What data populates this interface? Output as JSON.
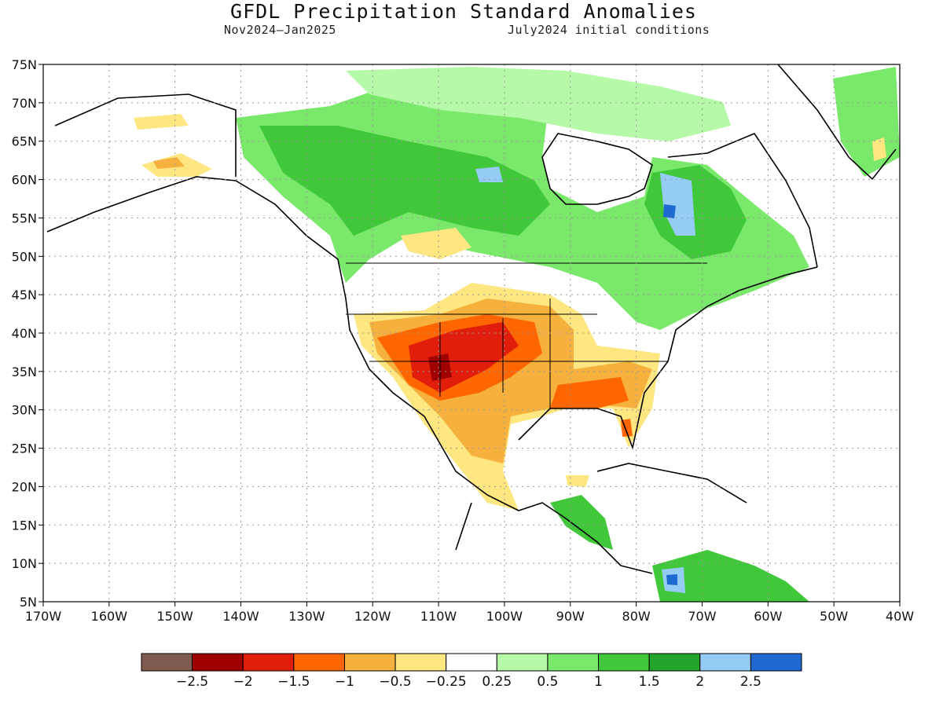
{
  "title": "GFDL Precipitation Standard Anomalies",
  "subtitle_left": "Nov2024–Jan2025",
  "subtitle_right": "July2024 initial conditions",
  "lat_ticks": [
    "75N",
    "70N",
    "65N",
    "60N",
    "55N",
    "50N",
    "45N",
    "40N",
    "35N",
    "30N",
    "25N",
    "20N",
    "15N",
    "10N",
    "5N"
  ],
  "lon_ticks": [
    "170W",
    "160W",
    "150W",
    "140W",
    "130W",
    "120W",
    "110W",
    "100W",
    "90W",
    "80W",
    "70W",
    "60W",
    "50W",
    "40W"
  ],
  "colorbar": {
    "colors": [
      "#7f5a4e",
      "#a00000",
      "#e01e0b",
      "#ff6600",
      "#f6b03d",
      "#fee680",
      "#ffffff",
      "#b6f9a8",
      "#7ae86a",
      "#40c83a",
      "#22a52a",
      "#95ccf6",
      "#1e6ad0"
    ],
    "labels": [
      "−2.5",
      "−2",
      "−1.5",
      "−1",
      "−0.5",
      "−0.25",
      "0.25",
      "0.5",
      "1",
      "1.5",
      "2",
      "2.5"
    ]
  },
  "palette": {
    "brown": "#7f5a4e",
    "darkred": "#a00000",
    "red": "#e01e0b",
    "orange": "#ff6600",
    "lightorange": "#f6b03d",
    "yellow": "#fee680",
    "white": "#ffffff",
    "palegreen": "#b6f9a8",
    "lightgreen": "#7ae86a",
    "green": "#40c83a",
    "darkgreen": "#22a52a",
    "lightblue": "#95ccf6",
    "blue": "#1e6ad0"
  }
}
